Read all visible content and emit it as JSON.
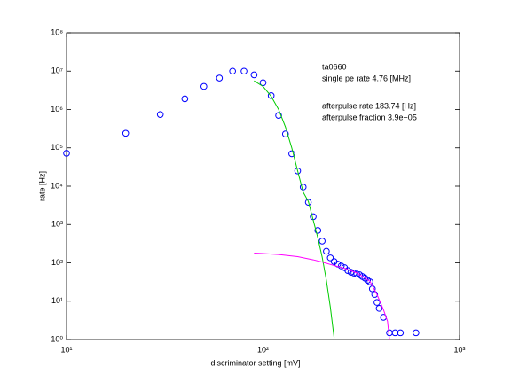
{
  "chart_data": {
    "type": "scatter",
    "x_label": "discriminator setting [mV]",
    "y_label": "rate [Hz]",
    "annotations": [
      "ta0660",
      "single pe rate 4.76 [MHz]",
      "afterpulse rate 183.74 [Hz]",
      "afterpulse fraction 3.9e−05"
    ],
    "xscale": "log",
    "yscale": "log",
    "xlim": [
      10,
      1000
    ],
    "ylim": [
      1,
      100000000
    ],
    "xticks": [
      {
        "value": 10,
        "label": "10¹"
      },
      {
        "value": 100,
        "label": "10²"
      },
      {
        "value": 1000,
        "label": "10³"
      }
    ],
    "yticks": [
      {
        "value": 1,
        "label": "10⁰"
      },
      {
        "value": 10,
        "label": "10¹"
      },
      {
        "value": 100,
        "label": "10²"
      },
      {
        "value": 1000,
        "label": "10³"
      },
      {
        "value": 10000,
        "label": "10⁴"
      },
      {
        "value": 100000,
        "label": "10⁵"
      },
      {
        "value": 1000000,
        "label": "10⁶"
      },
      {
        "value": 10000000,
        "label": "10⁷"
      },
      {
        "value": 100000000,
        "label": "10⁸"
      }
    ],
    "series": [
      {
        "type": "scatter",
        "color": "#0000ff",
        "x": [
          10,
          20,
          30,
          40,
          50,
          60,
          70,
          80,
          90,
          100,
          110,
          120,
          130,
          140,
          150,
          160,
          170,
          180,
          190,
          200,
          210,
          220,
          230,
          240,
          250,
          260,
          270,
          280,
          290,
          300,
          310,
          320,
          330,
          340,
          350,
          360,
          370,
          380,
          390,
          410,
          440,
          470,
          500,
          600
        ],
        "values": [
          72000,
          240000,
          740000,
          1900000,
          4000000,
          6600000,
          10000000,
          10000000,
          8000000,
          5000000,
          2300000,
          700000,
          230000,
          70000,
          25000,
          9500,
          3800,
          1600,
          700,
          370,
          200,
          135,
          108,
          93,
          83,
          75,
          63,
          57,
          54,
          51,
          49,
          44,
          40,
          35,
          32,
          21,
          15,
          9.3,
          6.5,
          3.8,
          1.5,
          1.5,
          1.5,
          1.5
        ]
      },
      {
        "type": "line",
        "color": "#00cc00",
        "x": [
          90,
          100,
          110,
          120,
          130,
          140,
          150,
          160,
          170,
          180,
          190,
          200,
          210,
          220,
          230
        ],
        "values": [
          5600000,
          4000000,
          2200000,
          1000000,
          350000,
          100000,
          25000,
          7000,
          4000,
          1300,
          450,
          140,
          35,
          7,
          1.1
        ]
      },
      {
        "type": "line",
        "color": "#ff00ff",
        "x": [
          90,
          100,
          120,
          150,
          180,
          200,
          230,
          260,
          300,
          350,
          380,
          410,
          430,
          440
        ],
        "values": [
          180,
          175,
          165,
          145,
          120,
          105,
          85,
          72,
          55,
          33,
          15,
          6,
          3,
          1
        ]
      }
    ]
  }
}
